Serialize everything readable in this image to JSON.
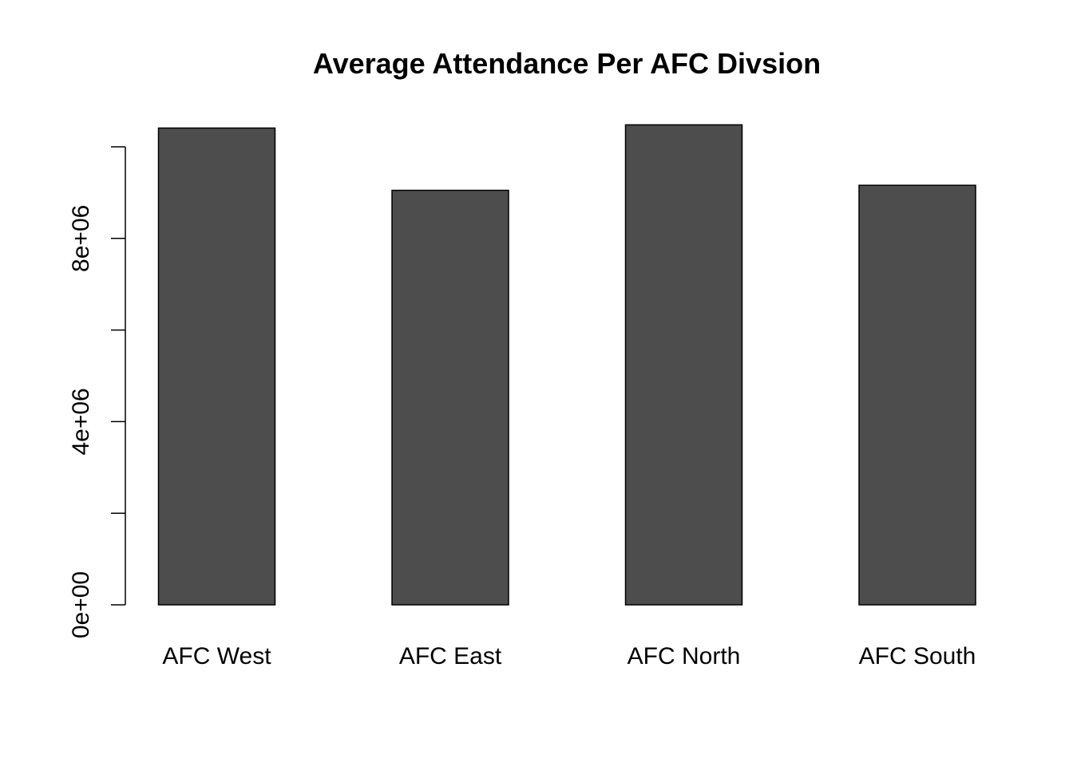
{
  "chart_data": {
    "type": "bar",
    "title": "Average Attendance Per AFC Divsion",
    "xlabel": "",
    "ylabel": "",
    "categories": [
      "AFC West",
      "AFC East",
      "AFC North",
      "AFC South"
    ],
    "values": [
      10410000,
      9050000,
      10480000,
      9160000
    ],
    "ylim": [
      0,
      10000000
    ],
    "yticks": [
      0,
      2000000,
      4000000,
      6000000,
      8000000,
      10000000
    ],
    "ytick_labels": [
      "0e+00",
      "",
      "4e+06",
      "",
      "8e+06",
      ""
    ],
    "bar_color": "#4d4d4d",
    "grid": false,
    "legend": "none"
  }
}
